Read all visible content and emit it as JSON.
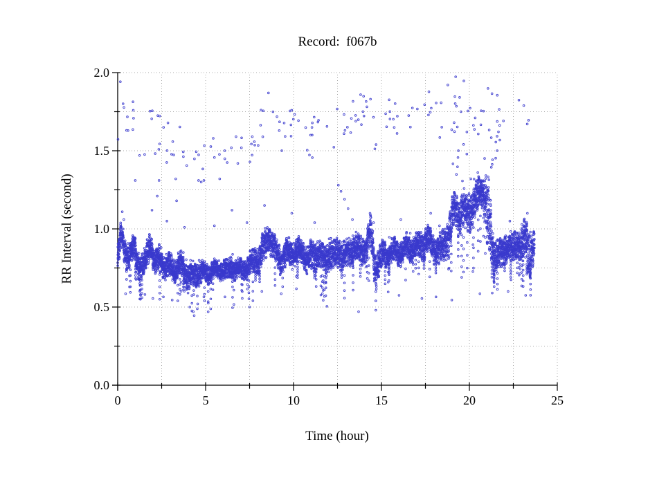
{
  "page": {
    "background": "#ffffff"
  },
  "chart_data": {
    "type": "scatter",
    "title": "Record:  f067b",
    "xlabel": "Time (hour)",
    "ylabel": "RR Interval (second)",
    "xlim": [
      0,
      25
    ],
    "ylim": [
      0.0,
      2.0
    ],
    "x_major_ticks": [
      {
        "label": "0",
        "value": 0
      },
      {
        "label": "5",
        "value": 5
      },
      {
        "label": "10",
        "value": 10
      },
      {
        "label": "15",
        "value": 15
      },
      {
        "label": "20",
        "value": 20
      },
      {
        "label": "25",
        "value": 25
      }
    ],
    "x_minor_step": 2.5,
    "y_major_ticks": [
      {
        "label": "0.0",
        "value": 0.0
      },
      {
        "label": "0.5",
        "value": 0.5
      },
      {
        "label": "1.0",
        "value": 1.0
      },
      {
        "label": "1.5",
        "value": 1.5
      },
      {
        "label": "2.0",
        "value": 2.0
      }
    ],
    "y_minor_step": 0.25,
    "grid": {
      "style": "dotted",
      "color": "#a8a8a8",
      "x_spacing": 2.5,
      "y_spacing": 0.25
    },
    "axis_color": "#000000",
    "marker": {
      "shape": "open-circle",
      "color": "#3a3acd",
      "radius_px": 1.3
    },
    "t_end": 23.7,
    "band": {
      "name": "rr-interval-dense-band",
      "description": "dense RR-interval trend band; columns are [hour, center_sec, halfwidth_sec]",
      "points_per_hour": 300,
      "dip_probability": 0.013,
      "dip_depth_range": [
        0.05,
        0.2
      ],
      "profile": [
        [
          0.0,
          0.8,
          0.08
        ],
        [
          0.2,
          0.96,
          0.06
        ],
        [
          0.45,
          0.85,
          0.07
        ],
        [
          0.7,
          0.83,
          0.06
        ],
        [
          0.95,
          0.88,
          0.07
        ],
        [
          1.2,
          0.76,
          0.06
        ],
        [
          1.5,
          0.76,
          0.06
        ],
        [
          1.85,
          0.93,
          0.07
        ],
        [
          2.1,
          0.76,
          0.06
        ],
        [
          2.4,
          0.82,
          0.07
        ],
        [
          2.7,
          0.74,
          0.06
        ],
        [
          3.0,
          0.77,
          0.06
        ],
        [
          3.3,
          0.73,
          0.06
        ],
        [
          3.6,
          0.78,
          0.06
        ],
        [
          3.9,
          0.71,
          0.06
        ],
        [
          4.2,
          0.69,
          0.07
        ],
        [
          4.5,
          0.71,
          0.06
        ],
        [
          4.8,
          0.73,
          0.06
        ],
        [
          5.1,
          0.71,
          0.05
        ],
        [
          5.4,
          0.74,
          0.05
        ],
        [
          5.7,
          0.73,
          0.05
        ],
        [
          6.0,
          0.75,
          0.05
        ],
        [
          6.3,
          0.73,
          0.05
        ],
        [
          6.6,
          0.76,
          0.06
        ],
        [
          6.9,
          0.73,
          0.05
        ],
        [
          7.2,
          0.74,
          0.05
        ],
        [
          7.5,
          0.77,
          0.06
        ],
        [
          7.8,
          0.8,
          0.07
        ],
        [
          8.1,
          0.82,
          0.07
        ],
        [
          8.4,
          0.9,
          0.08
        ],
        [
          8.6,
          0.96,
          0.06
        ],
        [
          8.8,
          0.89,
          0.07
        ],
        [
          9.0,
          0.85,
          0.07
        ],
        [
          9.3,
          0.8,
          0.07
        ],
        [
          9.6,
          0.84,
          0.07
        ],
        [
          9.9,
          0.86,
          0.06
        ],
        [
          10.2,
          0.84,
          0.07
        ],
        [
          10.5,
          0.86,
          0.06
        ],
        [
          10.8,
          0.8,
          0.07
        ],
        [
          11.1,
          0.82,
          0.07
        ],
        [
          11.4,
          0.85,
          0.07
        ],
        [
          11.7,
          0.8,
          0.07
        ],
        [
          12.0,
          0.84,
          0.07
        ],
        [
          12.3,
          0.82,
          0.07
        ],
        [
          12.6,
          0.86,
          0.07
        ],
        [
          12.9,
          0.82,
          0.07
        ],
        [
          13.2,
          0.85,
          0.07
        ],
        [
          13.5,
          0.88,
          0.07
        ],
        [
          13.8,
          0.86,
          0.07
        ],
        [
          14.1,
          0.88,
          0.06
        ],
        [
          14.4,
          0.97,
          0.08
        ],
        [
          14.65,
          0.74,
          0.09
        ],
        [
          14.9,
          0.8,
          0.07
        ],
        [
          15.2,
          0.84,
          0.06
        ],
        [
          15.5,
          0.85,
          0.06
        ],
        [
          15.8,
          0.86,
          0.06
        ],
        [
          16.1,
          0.85,
          0.06
        ],
        [
          16.4,
          0.88,
          0.06
        ],
        [
          16.7,
          0.87,
          0.06
        ],
        [
          17.0,
          0.89,
          0.06
        ],
        [
          17.3,
          0.9,
          0.07
        ],
        [
          17.6,
          0.93,
          0.07
        ],
        [
          17.9,
          0.89,
          0.07
        ],
        [
          18.2,
          0.86,
          0.07
        ],
        [
          18.5,
          0.88,
          0.08
        ],
        [
          18.8,
          0.96,
          0.09
        ],
        [
          19.0,
          1.06,
          0.1
        ],
        [
          19.2,
          1.12,
          0.09
        ],
        [
          19.4,
          1.09,
          0.1
        ],
        [
          19.6,
          1.13,
          0.09
        ],
        [
          19.8,
          1.08,
          0.1
        ],
        [
          20.0,
          1.12,
          0.1
        ],
        [
          20.2,
          1.16,
          0.09
        ],
        [
          20.4,
          1.18,
          0.09
        ],
        [
          20.6,
          1.24,
          0.08
        ],
        [
          20.8,
          1.26,
          0.07
        ],
        [
          21.0,
          1.1,
          0.18
        ],
        [
          21.2,
          0.95,
          0.15
        ],
        [
          21.35,
          0.85,
          0.09
        ],
        [
          21.6,
          0.83,
          0.08
        ],
        [
          21.8,
          0.82,
          0.07
        ],
        [
          22.0,
          0.87,
          0.07
        ],
        [
          22.2,
          0.9,
          0.07
        ],
        [
          22.4,
          0.85,
          0.08
        ],
        [
          22.6,
          0.89,
          0.07
        ],
        [
          22.8,
          0.92,
          0.06
        ],
        [
          23.0,
          0.9,
          0.1
        ],
        [
          23.2,
          0.92,
          0.1
        ],
        [
          23.4,
          0.85,
          0.12
        ],
        [
          23.55,
          0.88,
          0.1
        ],
        [
          23.7,
          0.87,
          0.08
        ]
      ]
    },
    "doubled_beat_cloud": {
      "name": "doubled-rr-outliers",
      "description": "sparse cloud of missed-beat intervals tracking 2x the band center",
      "factor": 2.0,
      "count": 145,
      "jitter_sigma": 0.065,
      "y_min": 1.33,
      "y_max": 1.97
    },
    "hump_scatter": {
      "name": "night-hump-scatter",
      "t_range": [
        18.9,
        21.6
      ],
      "y_range": [
        1.3,
        1.98
      ],
      "count": 46
    },
    "mid_outliers": [
      [
        0.26,
        1.11
      ],
      [
        0.35,
        1.06
      ],
      [
        1.0,
        1.31
      ],
      [
        1.95,
        1.12
      ],
      [
        2.25,
        1.21
      ],
      [
        2.35,
        1.31
      ],
      [
        2.8,
        1.05
      ],
      [
        3.3,
        1.32
      ],
      [
        3.35,
        1.18
      ],
      [
        3.8,
        1.01
      ],
      [
        4.6,
        1.31
      ],
      [
        4.75,
        1.3
      ],
      [
        4.9,
        1.31
      ],
      [
        5.5,
        1.02
      ],
      [
        5.8,
        1.32
      ],
      [
        6.5,
        1.12
      ],
      [
        7.35,
        1.04
      ],
      [
        8.35,
        1.15
      ],
      [
        9.9,
        1.1
      ],
      [
        11.2,
        1.04
      ],
      [
        12.55,
        1.28
      ],
      [
        12.7,
        1.24
      ],
      [
        12.9,
        1.19
      ],
      [
        13.1,
        1.13
      ],
      [
        13.35,
        1.06
      ],
      [
        14.35,
        1.1
      ],
      [
        14.55,
        1.04
      ],
      [
        16.1,
        1.06
      ],
      [
        17.8,
        1.1
      ],
      [
        18.3,
        1.02
      ],
      [
        22.3,
        1.05
      ],
      [
        23.3,
        1.1
      ]
    ],
    "low_outliers": [
      [
        0.45,
        0.585
      ],
      [
        1.3,
        0.575
      ],
      [
        1.55,
        0.58
      ],
      [
        2.0,
        0.555
      ],
      [
        2.6,
        0.565
      ],
      [
        3.1,
        0.545
      ],
      [
        4.0,
        0.59
      ],
      [
        4.1,
        0.5
      ],
      [
        4.3,
        0.47
      ],
      [
        4.35,
        0.445
      ],
      [
        4.55,
        0.52
      ],
      [
        4.9,
        0.565
      ],
      [
        5.15,
        0.525
      ],
      [
        6.1,
        0.565
      ],
      [
        7.5,
        0.5
      ],
      [
        8.2,
        0.6
      ],
      [
        9.3,
        0.585
      ],
      [
        11.9,
        0.505
      ],
      [
        13.7,
        0.47
      ],
      [
        16.0,
        0.575
      ],
      [
        17.3,
        0.555
      ],
      [
        18.1,
        0.565
      ],
      [
        19.0,
        0.545
      ],
      [
        20.6,
        0.585
      ],
      [
        21.3,
        0.59
      ],
      [
        22.2,
        0.6
      ],
      [
        23.2,
        0.575
      ]
    ],
    "render_seed": 20
  }
}
